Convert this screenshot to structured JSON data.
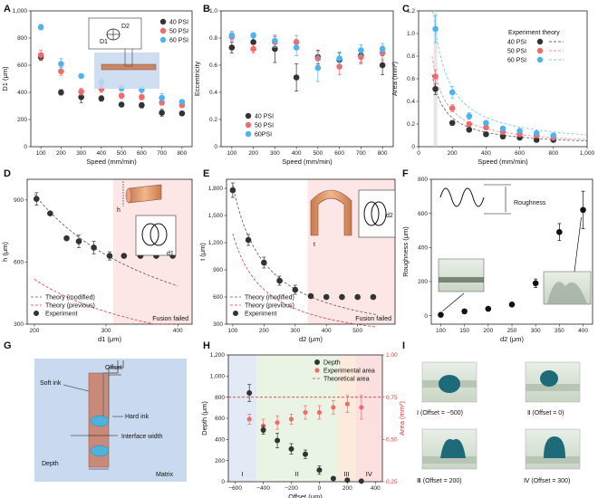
{
  "colors": {
    "psi40": "#333333",
    "psi50": "#f26b6b",
    "psi60": "#4fb3f0",
    "fusion_fill": "#fbe0e0",
    "blue_region": "#dde6f4",
    "green_region": "#e6f2df",
    "orange_region": "#fbe7d7",
    "red_region": "#fbdada",
    "matrix": "#c9d9f0",
    "soft_ink": "#c98a7a",
    "hard_ink": "#4fb3d9"
  },
  "panels": {
    "A": {
      "letter": "A",
      "legend": [
        "40 PSI",
        "50 PSI",
        "60 PSI"
      ],
      "inset_labels": [
        "D2",
        "D1"
      ],
      "chart_data": {
        "type": "scatter",
        "xlabel": "Speed (mm/min)",
        "ylabel": "D1 (μm)",
        "xlim": [
          50,
          850
        ],
        "ylim": [
          0,
          1000
        ],
        "xticks": [
          100,
          200,
          300,
          400,
          500,
          600,
          700,
          800
        ],
        "yticks": [
          0,
          200,
          400,
          600,
          800,
          1000
        ],
        "ytick_labels": [
          "0",
          "200",
          "400",
          "600",
          "800",
          "1,000"
        ],
        "series": [
          {
            "name": "40 PSI",
            "x": [
              100,
              200,
              300,
              400,
              500,
              600,
              700,
              800
            ],
            "y": [
              660,
              400,
              365,
              355,
              310,
              305,
              250,
              245
            ],
            "err": [
              25,
              20,
              40,
              20,
              15,
              20,
              25,
              15
            ]
          },
          {
            "name": "50 PSI",
            "x": [
              100,
              200,
              300,
              400,
              500,
              600,
              700,
              800
            ],
            "y": [
              675,
              555,
              405,
              425,
              375,
              365,
              325,
              305
            ],
            "err": [
              35,
              30,
              25,
              25,
              20,
              20,
              20,
              15
            ]
          },
          {
            "name": "60 PSI",
            "x": [
              100,
              200,
              300,
              400,
              500,
              600,
              700,
              800
            ],
            "y": [
              880,
              610,
              520,
              475,
              430,
              420,
              360,
              330
            ],
            "err": [
              20,
              40,
              15,
              30,
              20,
              25,
              30,
              15
            ]
          }
        ]
      }
    },
    "B": {
      "letter": "B",
      "legend": [
        "40 PSI",
        "50 PSI",
        "60PSI"
      ],
      "chart_data": {
        "type": "scatter",
        "xlabel": "Speed (mm/min)",
        "ylabel": "Eccentricity",
        "xlim": [
          50,
          850
        ],
        "ylim": [
          0,
          1.0
        ],
        "xticks": [
          100,
          200,
          300,
          400,
          500,
          600,
          700,
          800
        ],
        "yticks": [
          0,
          0.2,
          0.4,
          0.6,
          0.8,
          1.0
        ],
        "ytick_labels": [
          "0",
          "0.2",
          "0.4",
          "0.6",
          "0.8",
          "1.0"
        ],
        "series": [
          {
            "name": "40 PSI",
            "x": [
              100,
              200,
              300,
              400,
              500,
              600,
              700,
              800
            ],
            "y": [
              0.73,
              0.77,
              0.72,
              0.51,
              0.66,
              0.64,
              0.67,
              0.6
            ],
            "err": [
              0.04,
              0.04,
              0.1,
              0.1,
              0.05,
              0.05,
              0.05,
              0.07
            ]
          },
          {
            "name": "50 PSI",
            "x": [
              100,
              200,
              300,
              400,
              500,
              600,
              700,
              800
            ],
            "y": [
              0.81,
              0.72,
              0.77,
              0.77,
              0.65,
              0.59,
              0.66,
              0.69
            ],
            "err": [
              0.03,
              0.03,
              0.04,
              0.05,
              0.05,
              0.06,
              0.05,
              0.05
            ]
          },
          {
            "name": "60PSI",
            "x": [
              100,
              200,
              300,
              400,
              500,
              600,
              700,
              800
            ],
            "y": [
              0.82,
              0.82,
              0.78,
              0.73,
              0.58,
              0.65,
              0.71,
              0.72
            ],
            "err": [
              0.03,
              0.02,
              0.04,
              0.06,
              0.1,
              0.05,
              0.04,
              0.04
            ]
          }
        ]
      }
    },
    "C": {
      "letter": "C",
      "legend_title": "Experiment theory",
      "legend": [
        "40 PSI",
        "50 PSI",
        "60 PSI"
      ],
      "chart_data": {
        "type": "scatter",
        "xlabel": "Speed (mm/min)",
        "ylabel": "Area (mm²)",
        "xlim": [
          0,
          1000
        ],
        "ylim": [
          0,
          1.2
        ],
        "xticks": [
          0,
          200,
          400,
          600,
          800,
          1000
        ],
        "xtick_labels": [
          "0",
          "200",
          "400",
          "600",
          "800",
          "1,000"
        ],
        "yticks": [
          0,
          0.2,
          0.4,
          0.6,
          0.8,
          1.0,
          1.2
        ],
        "ytick_labels": [
          "0",
          "0.2",
          "0.4",
          "0.6",
          "0.8",
          "1.0",
          "1.2"
        ],
        "series": [
          {
            "name": "40 PSI",
            "x": [
              100,
              200,
              300,
              400,
              500,
              600,
              700,
              800
            ],
            "y": [
              0.51,
              0.21,
              0.15,
              0.11,
              0.09,
              0.08,
              0.06,
              0.06
            ],
            "err": [
              0.05,
              0.02,
              0.02,
              0.01,
              0.01,
              0.01,
              0.01,
              0.01
            ],
            "theory_k": 51
          },
          {
            "name": "50 PSI",
            "x": [
              100,
              200,
              300,
              400,
              500,
              600,
              700,
              800
            ],
            "y": [
              0.62,
              0.34,
              0.2,
              0.17,
              0.13,
              0.11,
              0.1,
              0.08
            ],
            "err": [
              0.06,
              0.03,
              0.02,
              0.02,
              0.01,
              0.01,
              0.01,
              0.01
            ],
            "theory_k": 64
          },
          {
            "name": "60 PSI",
            "x": [
              100,
              200,
              300,
              400,
              500,
              600,
              700,
              800
            ],
            "y": [
              1.04,
              0.48,
              0.27,
              0.21,
              0.16,
              0.14,
              0.12,
              0.1
            ],
            "err": [
              0.12,
              0.05,
              0.03,
              0.02,
              0.02,
              0.01,
              0.01,
              0.01
            ],
            "theory_k": 104
          }
        ]
      }
    },
    "D": {
      "letter": "D",
      "fusion_label": "Fusion failed",
      "legend": [
        "Theory (modified)",
        "Theory (previous)",
        "Experiment"
      ],
      "inset_labels": [
        "h",
        "d1"
      ],
      "chart_data": {
        "type": "scatter",
        "xlabel": "d1 (μm)",
        "ylabel": "h (μm)",
        "xlim": [
          190,
          420
        ],
        "ylim": [
          300,
          1000
        ],
        "xticks": [
          200,
          300,
          400
        ],
        "yticks": [
          300,
          600,
          900
        ],
        "fusion_x": 310,
        "series": [
          {
            "name": "Experiment",
            "x": [
              203,
              222,
              245,
              262,
              283,
              305,
              325,
              348,
              370,
              393
            ],
            "y": [
              905,
              835,
              715,
              700,
              670,
              630,
              630,
              630,
              630,
              630
            ],
            "err": [
              30,
              0,
              0,
              30,
              30,
              20,
              0,
              0,
              0,
              0
            ]
          }
        ]
      }
    },
    "E": {
      "letter": "E",
      "fusion_label": "Fusion failed",
      "legend": [
        "Theory (modified)",
        "Theory (previous)",
        "Experiment"
      ],
      "inset_labels": [
        "t",
        "d2"
      ],
      "chart_data": {
        "type": "scatter",
        "xlabel": "d2 (μm)",
        "ylabel": "t (μm)",
        "xlim": [
          80,
          620
        ],
        "ylim": [
          300,
          1900
        ],
        "xticks": [
          100,
          200,
          300,
          400,
          500
        ],
        "yticks": [
          300,
          600,
          900,
          1200,
          1500,
          1800
        ],
        "ytick_labels": [
          "300",
          "600",
          "900",
          "1,200",
          "1,500",
          "1,800"
        ],
        "fusion_x": 340,
        "series": [
          {
            "name": "Experiment",
            "x": [
              100,
              150,
              200,
              250,
              300,
              350,
              400,
              450,
              500,
              550
            ],
            "y": [
              1780,
              1230,
              980,
              780,
              680,
              610,
              600,
              600,
              600,
              600
            ],
            "err": [
              80,
              60,
              60,
              50,
              50,
              0,
              0,
              0,
              0,
              0
            ]
          }
        ]
      }
    },
    "F": {
      "letter": "F",
      "inset_label": "Roughness",
      "chart_data": {
        "type": "scatter",
        "xlabel": "d2 (μm)",
        "ylabel": "Roughness (μm)",
        "xlim": [
          80,
          420
        ],
        "ylim": [
          -50,
          800
        ],
        "xticks": [
          100,
          150,
          200,
          250,
          300,
          350,
          400
        ],
        "yticks": [
          0,
          200,
          400,
          600,
          800
        ],
        "series": [
          {
            "name": "",
            "x": [
              100,
              150,
              200,
              250,
              300,
              350,
              400
            ],
            "y": [
              5,
              25,
              40,
              65,
              190,
              490,
              620
            ],
            "err": [
              0,
              0,
              0,
              0,
              25,
              50,
              110
            ]
          }
        ]
      }
    },
    "G": {
      "letter": "G",
      "labels": {
        "offset": "Offset",
        "soft_ink": "Soft ink",
        "hard_ink": "Hard ink",
        "interface_width": "Interface width",
        "depth": "Depth",
        "matrix": "Matrix"
      }
    },
    "H": {
      "letter": "H",
      "legend": [
        "Depth",
        "Experimental area",
        "Theoretical area"
      ],
      "region_labels": [
        "I",
        "II",
        "III",
        "IV"
      ],
      "chart_data": {
        "type": "scatter",
        "xlabel": "Offset (μm)",
        "ylabel": "Depth (μm)",
        "y2label": "Area (mm²)",
        "xlim": [
          -650,
          450
        ],
        "ylim": [
          0,
          1200
        ],
        "y2lim": [
          0.25,
          1.0
        ],
        "xticks": [
          -600,
          -400,
          -200,
          0,
          200,
          400
        ],
        "xtick_labels": [
          "−600",
          "−400",
          "−200",
          "0",
          "200",
          "400"
        ],
        "yticks": [
          0,
          200,
          400,
          600,
          800,
          1000,
          1200
        ],
        "ytick_labels": [
          "0",
          "200",
          "400",
          "600",
          "800",
          "1,000",
          "1,200"
        ],
        "y2ticks": [
          0.25,
          0.5,
          0.75,
          1.0
        ],
        "y2tick_labels": [
          "0.25",
          "0.50",
          "0.75",
          "1.00"
        ],
        "regions": [
          -650,
          -450,
          130,
          260,
          450
        ],
        "depth": {
          "x": [
            -500,
            -400,
            -300,
            -200,
            -100,
            0,
            100,
            200,
            300
          ],
          "y": [
            840,
            490,
            390,
            310,
            260,
            110,
            30,
            15,
            5
          ],
          "err": [
            80,
            40,
            70,
            50,
            40,
            40,
            0,
            0,
            0
          ]
        },
        "exp_area": {
          "x": [
            -500,
            -400,
            -300,
            -200,
            -100,
            0,
            100,
            200,
            300
          ],
          "y": [
            0.62,
            0.58,
            0.6,
            0.62,
            0.66,
            0.66,
            0.69,
            0.71,
            0.69
          ],
          "err": [
            0.03,
            0.04,
            0.04,
            0.03,
            0.04,
            0.04,
            0.04,
            0.05,
            0.07
          ]
        },
        "theoretical_area": 0.75
      }
    },
    "I": {
      "letter": "I",
      "captions": [
        "Ⅰ (Offset = −500)",
        "Ⅱ (Offset = 0)",
        "Ⅲ (Offset = 200)",
        "Ⅳ (Offset = 300)"
      ]
    }
  }
}
